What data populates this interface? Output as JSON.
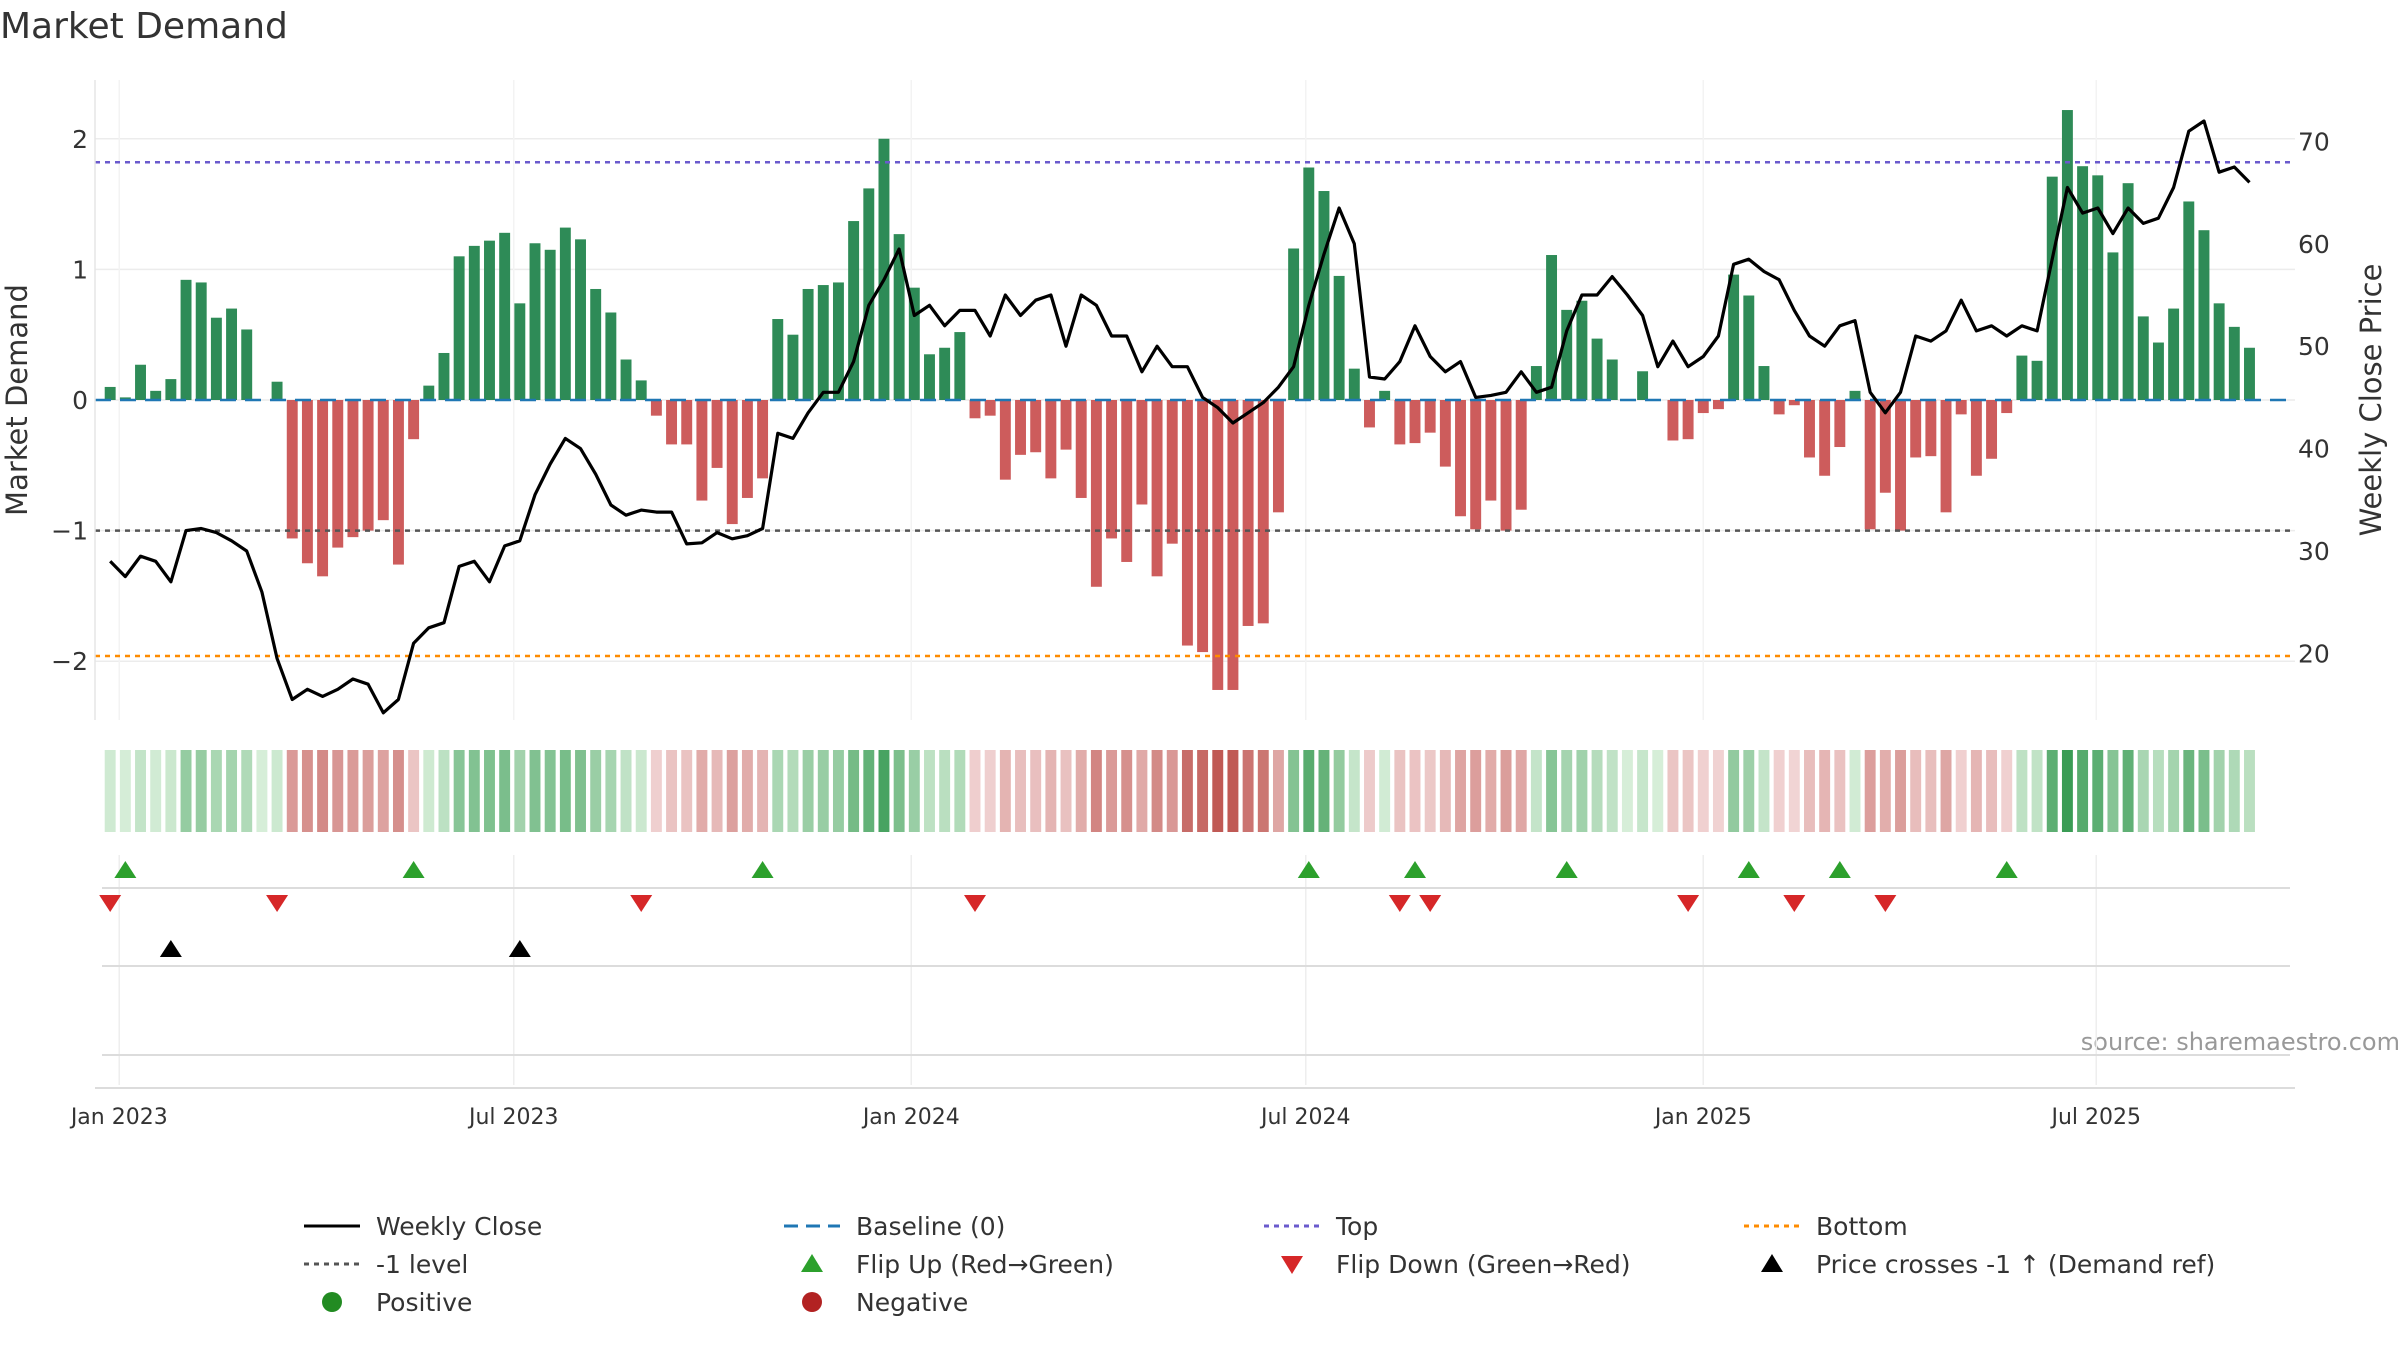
{
  "title": "Market Demand",
  "source_text": "source: sharemaestro.com",
  "chart_data": {
    "type": "bar",
    "title": "Market Demand",
    "ylabel": "Market Demand",
    "ylabel_right": "Weekly Close Price",
    "ylim": [
      -2.45,
      2.45
    ],
    "ylim_right": [
      13.5,
      76
    ],
    "yticks": [
      -2,
      -1,
      0,
      1,
      2
    ],
    "yticks_right": [
      20,
      30,
      40,
      50,
      60,
      70
    ],
    "xlim_weeks": [
      -1,
      144
    ],
    "xticks": [
      {
        "label": "Jan 2023",
        "week": 0.6
      },
      {
        "label": "Jul 2023",
        "week": 26.6
      },
      {
        "label": "Jan 2024",
        "week": 52.8
      },
      {
        "label": "Jul 2024",
        "week": 78.8
      },
      {
        "label": "Jan 2025",
        "week": 105
      },
      {
        "label": "Jul 2025",
        "week": 130.9
      }
    ],
    "reference_lines": {
      "top": 1.82,
      "bottom": -1.96,
      "minus_one": -1.0,
      "baseline": 0
    },
    "demand": [
      0.1,
      0.02,
      0.27,
      0.07,
      0.16,
      0.92,
      0.9,
      0.63,
      0.7,
      0.54,
      0.0,
      0.14,
      -1.06,
      -1.25,
      -1.35,
      -1.13,
      -1.05,
      -1.0,
      -0.92,
      -1.26,
      -0.3,
      0.11,
      0.36,
      1.1,
      1.18,
      1.22,
      1.28,
      0.74,
      1.2,
      1.15,
      1.32,
      1.23,
      0.85,
      0.67,
      0.31,
      0.15,
      -0.12,
      -0.34,
      -0.34,
      -0.77,
      -0.52,
      -0.95,
      -0.75,
      -0.6,
      0.62,
      0.5,
      0.85,
      0.88,
      0.9,
      1.37,
      1.62,
      2.0,
      1.27,
      0.86,
      0.35,
      0.4,
      0.52,
      -0.14,
      -0.12,
      -0.61,
      -0.42,
      -0.4,
      -0.6,
      -0.38,
      -0.75,
      -1.43,
      -1.06,
      -1.24,
      -0.8,
      -1.35,
      -1.1,
      -1.88,
      -1.93,
      -2.22,
      -2.22,
      -1.73,
      -1.71,
      -0.86,
      1.16,
      1.78,
      1.6,
      0.95,
      0.24,
      -0.21,
      0.07,
      -0.34,
      -0.33,
      -0.25,
      -0.51,
      -0.89,
      -0.99,
      -0.77,
      -1.0,
      -0.84,
      0.26,
      1.11,
      0.69,
      0.76,
      0.47,
      0.31,
      0.0,
      0.22,
      0.0,
      -0.31,
      -0.3,
      -0.1,
      -0.07,
      0.96,
      0.8,
      0.26,
      -0.11,
      -0.04,
      -0.44,
      -0.58,
      -0.36,
      0.07,
      -0.99,
      -0.71,
      -1.0,
      -0.44,
      -0.43,
      -0.86,
      -0.11,
      -0.58,
      -0.45,
      -0.1,
      0.34,
      0.3,
      1.71,
      2.22,
      1.79,
      1.72,
      1.13,
      1.66,
      0.64,
      0.44,
      0.7,
      1.52,
      1.3,
      0.74,
      0.56,
      0.4
    ],
    "close": [
      29,
      27.5,
      29.5,
      29,
      27,
      32,
      32.2,
      31.8,
      31,
      30,
      26,
      19.5,
      15.5,
      16.5,
      15.8,
      16.5,
      17.5,
      17,
      14.2,
      15.5,
      21,
      22.5,
      23,
      28.5,
      29,
      27,
      30.5,
      31,
      35.5,
      38.5,
      41,
      40,
      37.5,
      34.5,
      33.5,
      34,
      33.8,
      33.8,
      30.7,
      30.8,
      31.8,
      31.2,
      31.5,
      32.2,
      41.5,
      41,
      43.5,
      45.5,
      45.5,
      48.5,
      54,
      56.5,
      59.5,
      53,
      54,
      52,
      53.5,
      53.5,
      51,
      55,
      53,
      54.5,
      55,
      50,
      55,
      54,
      51,
      51,
      47.5,
      50,
      48,
      48,
      45,
      44,
      42.5,
      43.5,
      44.5,
      46,
      48,
      54,
      59,
      63.5,
      60,
      47,
      46.8,
      48.5,
      52,
      49,
      47.5,
      48.5,
      45,
      45.2,
      45.5,
      47.5,
      45.5,
      46,
      51.5,
      55,
      55,
      56.8,
      55,
      53,
      48,
      50.5,
      48,
      49,
      51,
      58,
      58.5,
      57.3,
      56.5,
      53.5,
      51,
      50,
      52,
      52.5,
      45.5,
      43.5,
      45.5,
      51,
      50.5,
      51.5,
      54.5,
      51.5,
      52,
      51,
      52,
      51.5,
      58.5,
      65.5,
      63,
      63.5,
      61,
      63.5,
      62,
      62.5,
      65.5,
      71,
      72,
      67,
      67.5,
      66
    ]
  },
  "strip_cells": [],
  "markers": {
    "flip_up_weeks": [
      1,
      20,
      43,
      79,
      86,
      96,
      108,
      114,
      125
    ],
    "flip_down_weeks": [
      0,
      11,
      35,
      57,
      85,
      87,
      104,
      111,
      117
    ],
    "price_cross_weeks": [
      4,
      27
    ]
  },
  "colors": {
    "positive_bar": "#2e8b57",
    "negative_bar": "#cd5c5c",
    "close_line": "#000000",
    "baseline": "#1f77b4",
    "top_line": "#6a5acd",
    "bottom_line": "#ff8c00",
    "minus_one_line": "#555555",
    "flip_up": "#2ca02c",
    "flip_down": "#d62728",
    "price_cross": "#000000",
    "positive_dot": "#228b22",
    "negative_dot": "#b22222"
  },
  "legend": [
    {
      "key": "weekly_close",
      "label": "Weekly Close",
      "symbol": "line-solid",
      "color": "#000000"
    },
    {
      "key": "baseline",
      "label": "Baseline (0)",
      "symbol": "line-dash",
      "color": "#1f77b4"
    },
    {
      "key": "top",
      "label": "Top",
      "symbol": "line-dot",
      "color": "#6a5acd"
    },
    {
      "key": "bottom",
      "label": "Bottom",
      "symbol": "line-dot",
      "color": "#ff8c00"
    },
    {
      "key": "minus_one",
      "label": "-1 level",
      "symbol": "line-dot",
      "color": "#555555"
    },
    {
      "key": "flip_up",
      "label": "Flip Up (Red→Green)",
      "symbol": "triangle-up",
      "color": "#2ca02c"
    },
    {
      "key": "flip_down",
      "label": "Flip Down (Green→Red)",
      "symbol": "triangle-down",
      "color": "#d62728"
    },
    {
      "key": "price_cross",
      "label": "Price crosses -1 ↑ (Demand ref)",
      "symbol": "triangle-up",
      "color": "#000000"
    },
    {
      "key": "positive",
      "label": "Positive",
      "symbol": "dot",
      "color": "#228b22"
    },
    {
      "key": "negative",
      "label": "Negative",
      "symbol": "dot",
      "color": "#b22222"
    }
  ]
}
